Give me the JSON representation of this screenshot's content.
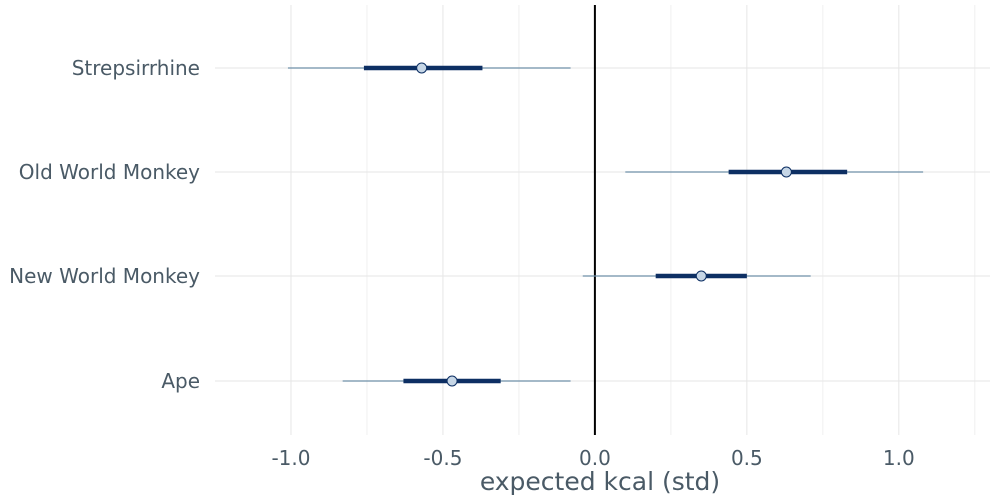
{
  "chart_data": {
    "type": "interval",
    "xlabel": "expected kcal (std)",
    "ylabel": "",
    "xlim": [
      -1.25,
      1.3
    ],
    "x_ticks": [
      -1.0,
      -0.5,
      0.0,
      0.5,
      1.0
    ],
    "x_tick_labels": [
      "-1.0",
      "-0.5",
      "0.0",
      "0.5",
      "1.0"
    ],
    "categories": [
      "Strepsirrhine",
      "Old World Monkey",
      "New World Monkey",
      "Ape"
    ],
    "series": [
      {
        "category": "Strepsirrhine",
        "point": -0.57,
        "inner": [
          -0.76,
          -0.37
        ],
        "outer": [
          -1.01,
          -0.08
        ]
      },
      {
        "category": "Old World Monkey",
        "point": 0.63,
        "inner": [
          0.44,
          0.83
        ],
        "outer": [
          0.1,
          1.08
        ]
      },
      {
        "category": "New World Monkey",
        "point": 0.35,
        "inner": [
          0.2,
          0.5
        ],
        "outer": [
          -0.04,
          0.71
        ]
      },
      {
        "category": "Ape",
        "point": -0.47,
        "inner": [
          -0.63,
          -0.31
        ],
        "outer": [
          -0.83,
          -0.08
        ]
      }
    ],
    "reference_line": 0.0,
    "grid": true,
    "colors": {
      "outer": "#6e8fa8",
      "inner": "#0d2f63",
      "point_fill": "#c6d6e6",
      "point_stroke": "#0d2f63",
      "grid": "#e6e6e6",
      "reference": "#000000",
      "text": "#4a5a66"
    }
  }
}
